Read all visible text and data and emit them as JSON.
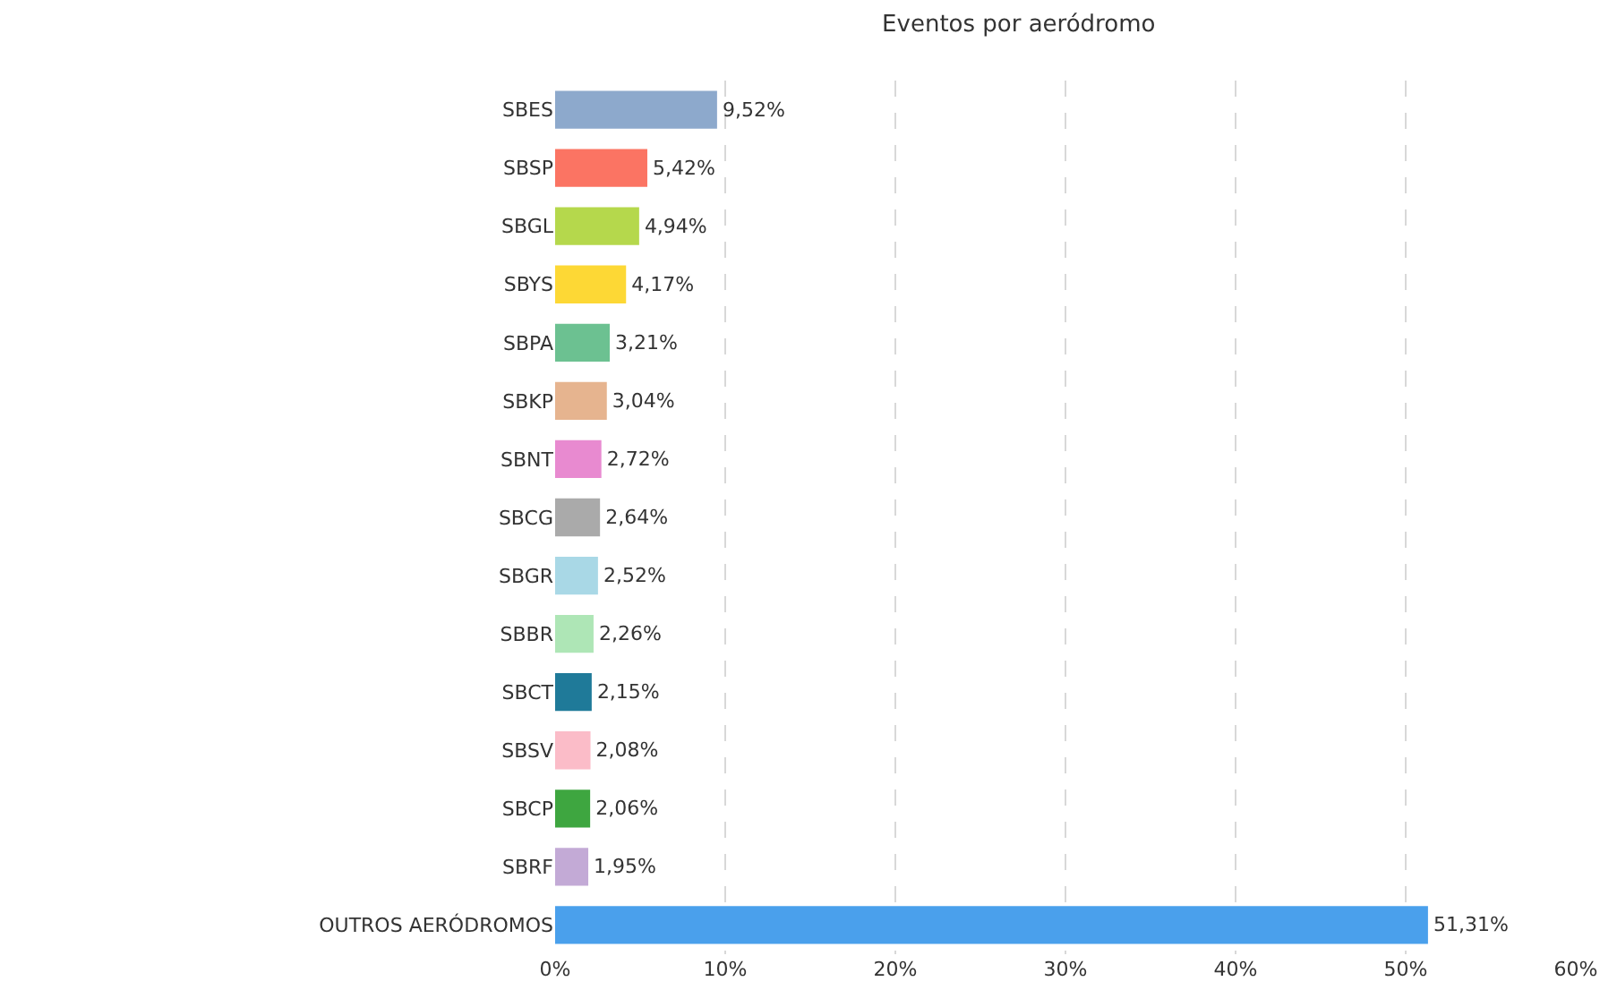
{
  "chart_data": {
    "type": "bar",
    "orientation": "horizontal",
    "title": "Eventos por aeródromo",
    "categories": [
      "SBES",
      "SBSP",
      "SBGL",
      "SBYS",
      "SBPA",
      "SBKP",
      "SBNT",
      "SBCG",
      "SBGR",
      "SBBR",
      "SBCT",
      "SBSV",
      "SBCP",
      "SBRF",
      "OUTROS AERÓDROMOS"
    ],
    "values": [
      9.52,
      5.42,
      4.94,
      4.17,
      3.21,
      3.04,
      2.72,
      2.64,
      2.52,
      2.26,
      2.15,
      2.08,
      2.06,
      1.95,
      51.31
    ],
    "value_labels": [
      "9,52%",
      "5,42%",
      "4,94%",
      "4,17%",
      "3,21%",
      "3,04%",
      "2,72%",
      "2,64%",
      "2,52%",
      "2,26%",
      "2,15%",
      "2,08%",
      "2,06%",
      "1,95%",
      "51,31%"
    ],
    "colors": [
      "#8da9cc",
      "#fb7463",
      "#b5d84c",
      "#fdd835",
      "#6cc191",
      "#e6b48f",
      "#e88ad0",
      "#aaaaaa",
      "#a9d8e6",
      "#aee6b6",
      "#1f7a99",
      "#fbbcc8",
      "#3ea640",
      "#c3aad6",
      "#4aa0ec"
    ],
    "xlim": [
      0,
      60
    ],
    "xticks": [
      {
        "value": 0,
        "label": "0%"
      },
      {
        "value": 10,
        "label": "10%"
      },
      {
        "value": 20,
        "label": "20%"
      },
      {
        "value": 30,
        "label": "30%"
      },
      {
        "value": 40,
        "label": "40%"
      },
      {
        "value": 50,
        "label": "50%"
      },
      {
        "value": 60,
        "label": "60%"
      }
    ],
    "grid": "x"
  }
}
